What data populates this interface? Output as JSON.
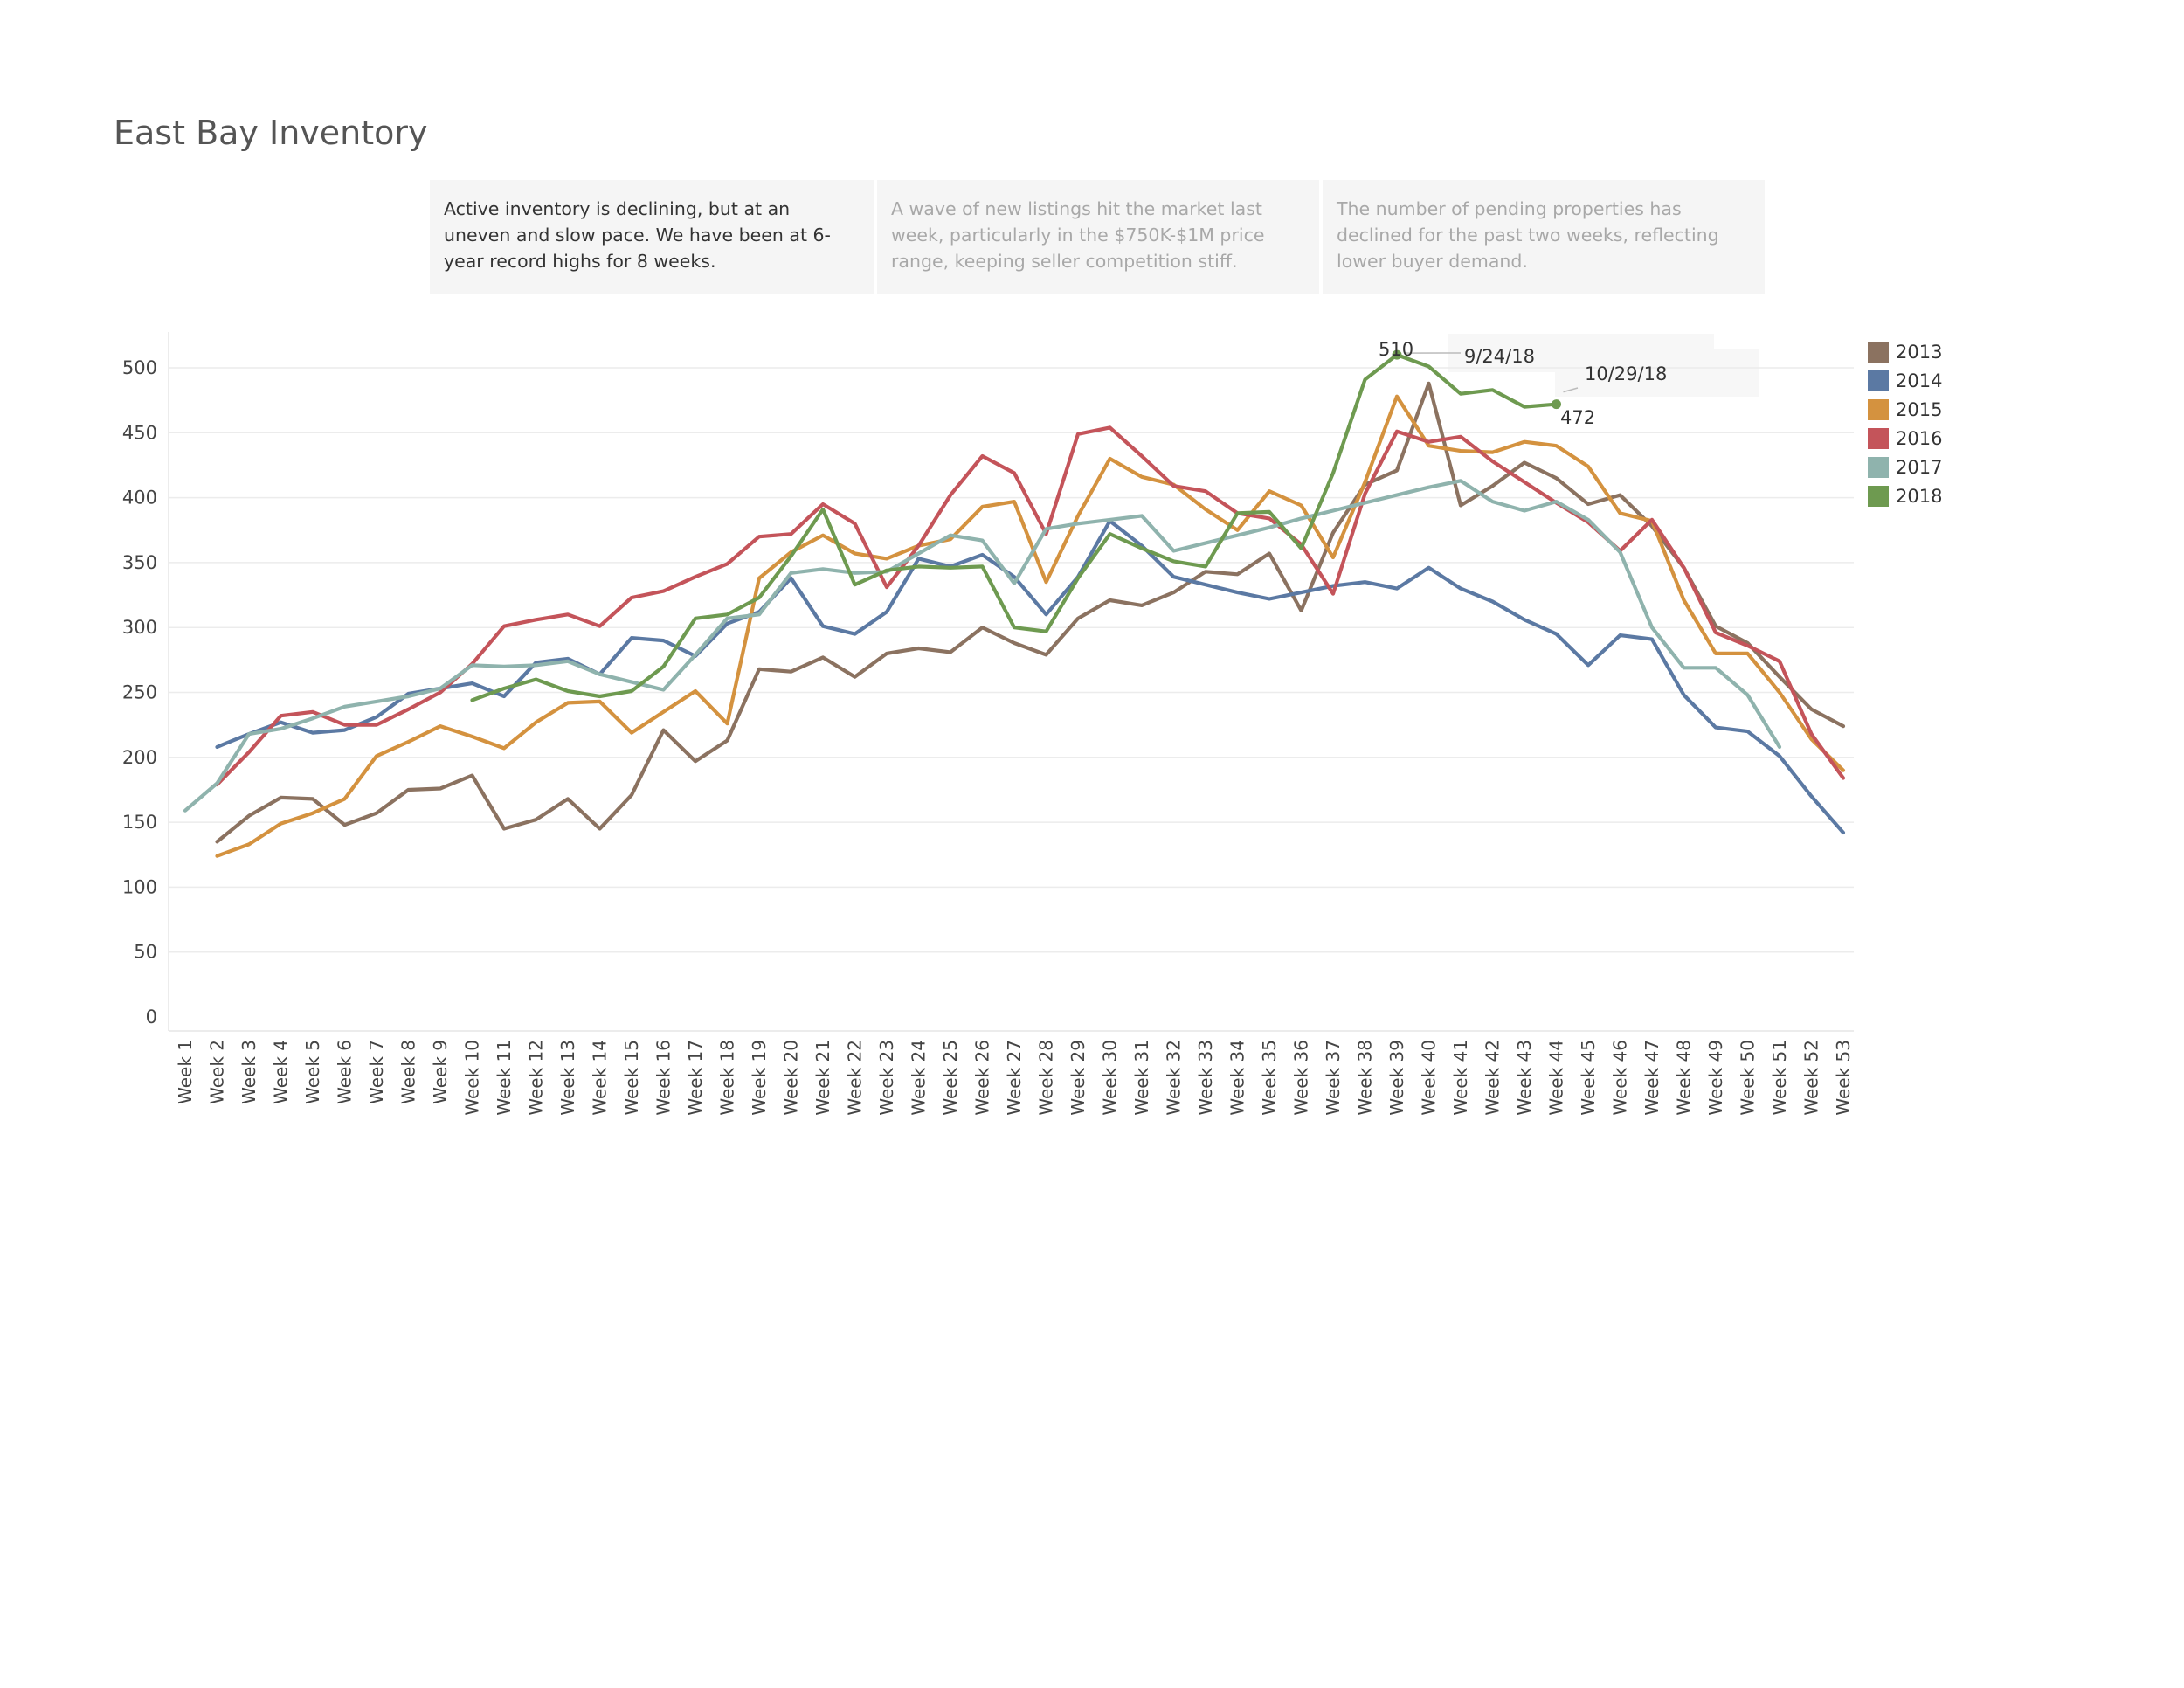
{
  "title": "East Bay Inventory",
  "notes": [
    "Active inventory is declining, but at an uneven and slow pace. We have been at 6-year record highs for 8 weeks.",
    "A wave of new listings hit the market last week, particularly in the $750K-$1M price range, keeping seller competition stiff.",
    "The number of pending properties has declined for the past two weeks, reflecting lower buyer demand."
  ],
  "annotations": {
    "peak_value": "510",
    "peak_date": "9/24/18",
    "last_date": "10/29/18",
    "last_value": "472"
  },
  "chart_data": {
    "type": "line",
    "categories": [
      "Week 1",
      "Week 2",
      "Week 3",
      "Week 4",
      "Week 5",
      "Week 6",
      "Week 7",
      "Week 8",
      "Week 9",
      "Week 10",
      "Week 11",
      "Week 12",
      "Week 13",
      "Week 14",
      "Week 15",
      "Week 16",
      "Week 17",
      "Week 18",
      "Week 19",
      "Week 20",
      "Week 21",
      "Week 22",
      "Week 23",
      "Week 24",
      "Week 25",
      "Week 26",
      "Week 27",
      "Week 28",
      "Week 29",
      "Week 30",
      "Week 31",
      "Week 32",
      "Week 33",
      "Week 34",
      "Week 35",
      "Week 36",
      "Week 37",
      "Week 38",
      "Week 39",
      "Week 40",
      "Week 41",
      "Week 42",
      "Week 43",
      "Week 44",
      "Week 45",
      "Week 46",
      "Week 47",
      "Week 48",
      "Week 49",
      "Week 50",
      "Week 51",
      "Week 52",
      "Week 53"
    ],
    "ylim": [
      0,
      530
    ],
    "yticks": [
      0,
      50,
      100,
      150,
      200,
      250,
      300,
      350,
      400,
      450,
      500
    ],
    "grid": true,
    "legend_position": "right",
    "series": [
      {
        "name": "2013",
        "color": "#8b7260",
        "values": [
          null,
          135,
          155,
          169,
          168,
          148,
          157,
          175,
          176,
          186,
          145,
          152,
          168,
          145,
          171,
          221,
          197,
          213,
          268,
          266,
          277,
          262,
          280,
          284,
          281,
          300,
          288,
          279,
          307,
          321,
          317,
          327,
          343,
          341,
          357,
          313,
          373,
          410,
          421,
          488,
          394,
          409,
          427,
          415,
          395,
          402,
          378,
          346,
          301,
          288,
          262,
          237,
          224
        ]
      },
      {
        "name": "2014",
        "color": "#5b79a3",
        "values": [
          null,
          208,
          218,
          227,
          219,
          221,
          231,
          249,
          253,
          257,
          247,
          273,
          276,
          264,
          292,
          290,
          278,
          303,
          312,
          338,
          301,
          295,
          312,
          353,
          347,
          356,
          339,
          310,
          339,
          382,
          363,
          339,
          333,
          327,
          322,
          327,
          332,
          335,
          330,
          346,
          330,
          320,
          306,
          295,
          271,
          294,
          291,
          248,
          223,
          220,
          201,
          170,
          142
        ]
      },
      {
        "name": "2015",
        "color": "#d4923f",
        "values": [
          null,
          124,
          133,
          149,
          157,
          168,
          201,
          212,
          224,
          216,
          207,
          227,
          242,
          243,
          219,
          235,
          251,
          226,
          338,
          358,
          371,
          357,
          353,
          363,
          368,
          393,
          397,
          335,
          386,
          430,
          416,
          410,
          391,
          375,
          405,
          394,
          354,
          412,
          478,
          440,
          436,
          435,
          443,
          440,
          424,
          388,
          382,
          321,
          280,
          280,
          250,
          214,
          190
        ]
      },
      {
        "name": "2016",
        "color": "#c4545a",
        "values": [
          null,
          179,
          204,
          232,
          235,
          225,
          225,
          237,
          250,
          272,
          301,
          306,
          310,
          301,
          323,
          328,
          339,
          349,
          370,
          372,
          395,
          380,
          331,
          363,
          402,
          432,
          419,
          372,
          449,
          454,
          432,
          409,
          405,
          388,
          384,
          364,
          326,
          403,
          451,
          443,
          447,
          428,
          412,
          396,
          381,
          359,
          383,
          346,
          296,
          286,
          274,
          218,
          184
        ]
      },
      {
        "name": "2017",
        "color": "#8fb3ad",
        "values": [
          159,
          180,
          218,
          222,
          230,
          239,
          243,
          247,
          253,
          271,
          270,
          271,
          274,
          264,
          258,
          252,
          279,
          307,
          310,
          342,
          345,
          342,
          343,
          357,
          371,
          367,
          334,
          376,
          380,
          383,
          386,
          359,
          365,
          371,
          377,
          384,
          390,
          396,
          402,
          408,
          413,
          397,
          390,
          397,
          383,
          358,
          300,
          269,
          269,
          248,
          208,
          null,
          null
        ]
      },
      {
        "name": "2018",
        "color": "#6e9a50",
        "values": [
          null,
          null,
          null,
          null,
          null,
          null,
          null,
          null,
          null,
          244,
          253,
          260,
          251,
          247,
          251,
          270,
          307,
          310,
          323,
          355,
          391,
          333,
          344,
          347,
          346,
          347,
          300,
          297,
          338,
          372,
          361,
          351,
          347,
          388,
          389,
          361,
          419,
          491,
          510,
          501,
          480,
          483,
          470,
          472,
          null,
          null,
          null,
          null,
          null,
          null,
          null,
          null,
          null
        ]
      }
    ]
  }
}
